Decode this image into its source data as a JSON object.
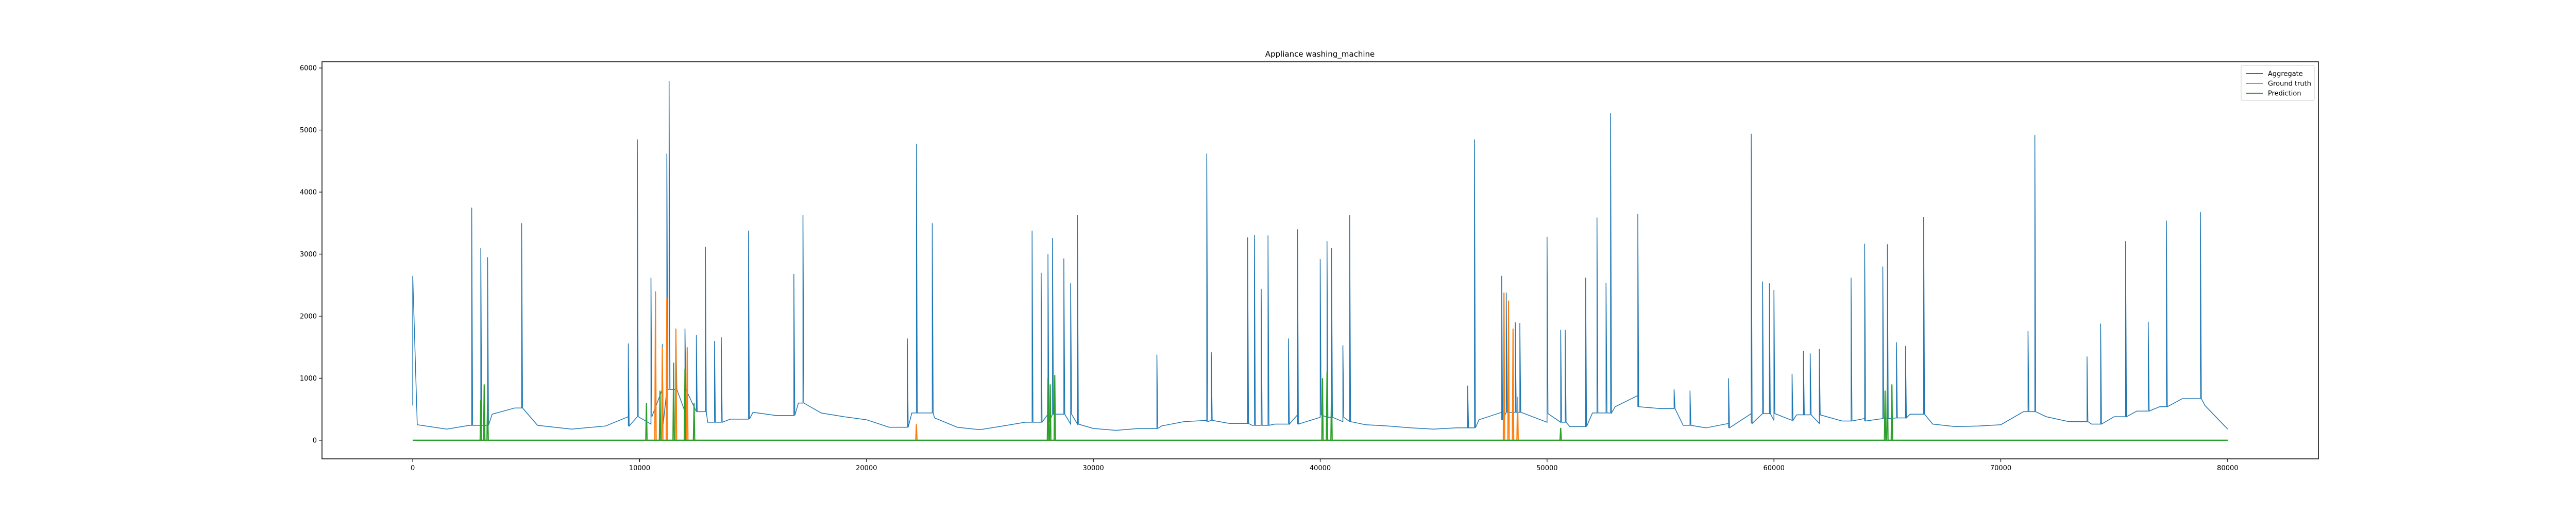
{
  "chart_data": {
    "type": "line",
    "title": "Appliance washing_machine",
    "xlabel": "",
    "ylabel": "",
    "xlim": [
      -4000,
      84000
    ],
    "ylim": [
      -300,
      6100
    ],
    "xticks": [
      0,
      10000,
      20000,
      30000,
      40000,
      50000,
      60000,
      70000,
      80000
    ],
    "yticks": [
      0,
      1000,
      2000,
      3000,
      4000,
      5000,
      6000
    ],
    "grid": false,
    "legend": {
      "position": "top-right"
    },
    "series": [
      {
        "name": "Aggregate",
        "color": "#1f77b4",
        "baseline": [
          [
            0,
            560
          ],
          [
            0,
            2650
          ],
          [
            200,
            250
          ],
          [
            1500,
            180
          ],
          [
            2500,
            240
          ],
          [
            3500,
            420
          ],
          [
            4500,
            520
          ],
          [
            5500,
            240
          ],
          [
            7000,
            180
          ],
          [
            8500,
            230
          ],
          [
            9500,
            380
          ],
          [
            10500,
            260
          ],
          [
            11000,
            820
          ],
          [
            12000,
            460
          ],
          [
            13000,
            290
          ],
          [
            14000,
            340
          ],
          [
            15000,
            450
          ],
          [
            16000,
            400
          ],
          [
            17000,
            600
          ],
          [
            18000,
            440
          ],
          [
            19000,
            380
          ],
          [
            20000,
            330
          ],
          [
            21000,
            210
          ],
          [
            22000,
            440
          ],
          [
            23000,
            360
          ],
          [
            24000,
            210
          ],
          [
            25000,
            170
          ],
          [
            26000,
            230
          ],
          [
            27000,
            290
          ],
          [
            28000,
            420
          ],
          [
            29000,
            260
          ],
          [
            30000,
            190
          ],
          [
            31000,
            160
          ],
          [
            32000,
            190
          ],
          [
            33000,
            230
          ],
          [
            34000,
            300
          ],
          [
            35000,
            320
          ],
          [
            36000,
            270
          ],
          [
            37000,
            240
          ],
          [
            38000,
            260
          ],
          [
            39000,
            410
          ],
          [
            40000,
            370
          ],
          [
            41000,
            300
          ],
          [
            42000,
            250
          ],
          [
            43000,
            230
          ],
          [
            44000,
            200
          ],
          [
            45000,
            180
          ],
          [
            46000,
            200
          ],
          [
            47000,
            330
          ],
          [
            48000,
            450
          ],
          [
            49000,
            430
          ],
          [
            50000,
            290
          ],
          [
            51000,
            220
          ],
          [
            52000,
            440
          ],
          [
            53000,
            540
          ],
          [
            54000,
            720
          ],
          [
            55000,
            510
          ],
          [
            56000,
            240
          ],
          [
            57000,
            200
          ],
          [
            58000,
            270
          ],
          [
            59000,
            430
          ],
          [
            60000,
            320
          ],
          [
            61000,
            410
          ],
          [
            62000,
            270
          ],
          [
            63000,
            310
          ],
          [
            64000,
            350
          ],
          [
            65000,
            360
          ],
          [
            66000,
            420
          ],
          [
            67000,
            260
          ],
          [
            68000,
            220
          ],
          [
            69000,
            230
          ],
          [
            70000,
            250
          ],
          [
            71000,
            460
          ],
          [
            72000,
            380
          ],
          [
            73000,
            300
          ],
          [
            74000,
            260
          ],
          [
            75000,
            380
          ],
          [
            76000,
            470
          ],
          [
            77000,
            540
          ],
          [
            78000,
            670
          ],
          [
            79000,
            560
          ],
          [
            80000,
            180
          ]
        ],
        "peaks": [
          [
            2600,
            3750
          ],
          [
            3000,
            3100
          ],
          [
            3300,
            2950
          ],
          [
            4800,
            3500
          ],
          [
            9500,
            1560
          ],
          [
            9900,
            4850
          ],
          [
            10500,
            2620
          ],
          [
            11000,
            1550
          ],
          [
            11200,
            4620
          ],
          [
            11300,
            5790
          ],
          [
            11600,
            1800
          ],
          [
            12000,
            1800
          ],
          [
            12500,
            1700
          ],
          [
            12900,
            3120
          ],
          [
            13300,
            1600
          ],
          [
            13600,
            1660
          ],
          [
            14800,
            3380
          ],
          [
            16800,
            2680
          ],
          [
            17200,
            3630
          ],
          [
            21800,
            1640
          ],
          [
            22200,
            4780
          ],
          [
            22900,
            3500
          ],
          [
            27300,
            3380
          ],
          [
            27700,
            2700
          ],
          [
            28000,
            3000
          ],
          [
            28200,
            3260
          ],
          [
            28700,
            2930
          ],
          [
            29000,
            2530
          ],
          [
            29300,
            3630
          ],
          [
            32800,
            1380
          ],
          [
            35000,
            4620
          ],
          [
            35200,
            1420
          ],
          [
            36800,
            3270
          ],
          [
            37100,
            3310
          ],
          [
            37400,
            2440
          ],
          [
            37700,
            3300
          ],
          [
            38600,
            1640
          ],
          [
            39000,
            3400
          ],
          [
            40000,
            2920
          ],
          [
            40300,
            3210
          ],
          [
            40500,
            3100
          ],
          [
            41000,
            1530
          ],
          [
            41300,
            3630
          ],
          [
            46500,
            880
          ],
          [
            46800,
            4850
          ],
          [
            48000,
            2650
          ],
          [
            48200,
            2380
          ],
          [
            48600,
            1900
          ],
          [
            48800,
            1890
          ],
          [
            50000,
            3280
          ],
          [
            50600,
            1780
          ],
          [
            50800,
            1780
          ],
          [
            51700,
            2620
          ],
          [
            52200,
            3590
          ],
          [
            52600,
            2540
          ],
          [
            52800,
            5270
          ],
          [
            54000,
            3650
          ],
          [
            55600,
            820
          ],
          [
            56300,
            800
          ],
          [
            58000,
            1000
          ],
          [
            59000,
            4940
          ],
          [
            59500,
            2560
          ],
          [
            59800,
            2530
          ],
          [
            60000,
            2420
          ],
          [
            60800,
            1070
          ],
          [
            61300,
            1440
          ],
          [
            61600,
            1400
          ],
          [
            62000,
            1470
          ],
          [
            63400,
            2620
          ],
          [
            64000,
            3170
          ],
          [
            64800,
            2800
          ],
          [
            65000,
            3160
          ],
          [
            65400,
            1580
          ],
          [
            65800,
            1520
          ],
          [
            66600,
            3600
          ],
          [
            71200,
            1760
          ],
          [
            71500,
            4920
          ],
          [
            73800,
            1350
          ],
          [
            74400,
            1880
          ],
          [
            75500,
            3210
          ],
          [
            76500,
            1910
          ],
          [
            77300,
            3540
          ],
          [
            78800,
            3680
          ]
        ]
      },
      {
        "name": "Ground truth",
        "color": "#ff7f0e",
        "spikes": [
          [
            10700,
            2400
          ],
          [
            11000,
            1500
          ],
          [
            11200,
            2300
          ],
          [
            11600,
            1800
          ],
          [
            12100,
            1500
          ],
          [
            22200,
            260
          ],
          [
            48100,
            2380
          ],
          [
            48300,
            2250
          ],
          [
            48500,
            1800
          ],
          [
            48700,
            700
          ]
        ]
      },
      {
        "name": "Prediction",
        "color": "#2ca02c",
        "spikes": [
          [
            3000,
            650
          ],
          [
            3150,
            900
          ],
          [
            3300,
            640
          ],
          [
            10300,
            600
          ],
          [
            10900,
            800
          ],
          [
            11500,
            1250
          ],
          [
            12000,
            1150
          ],
          [
            12400,
            600
          ],
          [
            28000,
            1000
          ],
          [
            28100,
            900
          ],
          [
            28300,
            1050
          ],
          [
            40100,
            1000
          ],
          [
            40300,
            1100
          ],
          [
            40500,
            850
          ],
          [
            50600,
            200
          ],
          [
            64900,
            800
          ],
          [
            65000,
            1000
          ],
          [
            65200,
            900
          ]
        ]
      }
    ]
  }
}
